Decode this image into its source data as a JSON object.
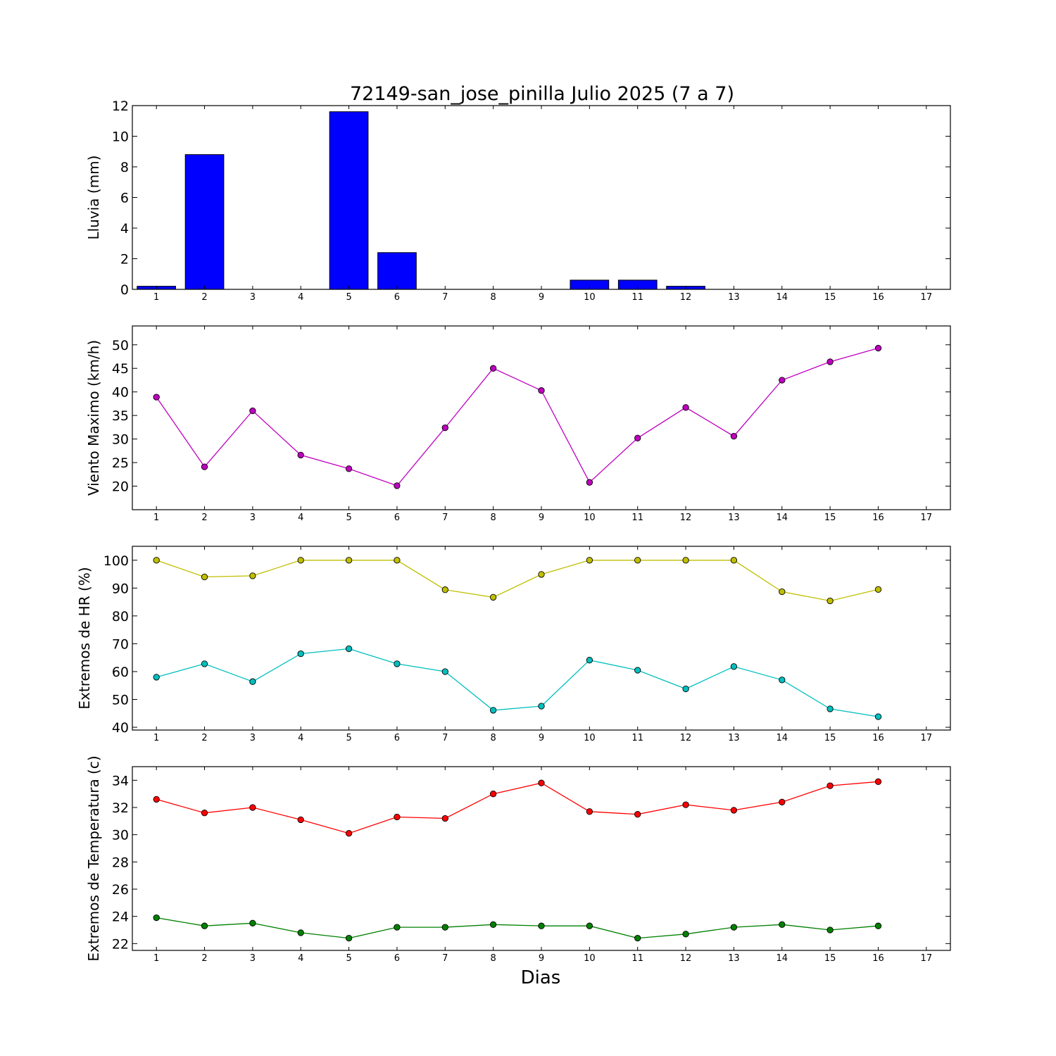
{
  "title": "72149-san_jose_pinilla Julio 2025  (7 a 7)",
  "xlabel": "Dias",
  "chart_data": [
    {
      "type": "bar",
      "ylabel": "Lluvia (mm)",
      "x": [
        1,
        2,
        3,
        4,
        5,
        6,
        7,
        8,
        9,
        10,
        11,
        12,
        13,
        14,
        15,
        16
      ],
      "xticks": [
        1,
        2,
        3,
        4,
        5,
        6,
        7,
        8,
        9,
        10,
        11,
        12,
        13,
        14,
        15,
        16,
        17
      ],
      "xlim": [
        0.5,
        17.5
      ],
      "ylim": [
        0,
        12
      ],
      "yticks": [
        0,
        2,
        4,
        6,
        8,
        10,
        12
      ],
      "series": [
        {
          "values": [
            0.2,
            8.8,
            0,
            0,
            11.6,
            2.4,
            0,
            0,
            0,
            0.6,
            0.6,
            0.2,
            0,
            0,
            0,
            0
          ],
          "color": "#0000ff"
        }
      ]
    },
    {
      "type": "line",
      "ylabel": "Viento Maximo (km/h)",
      "x": [
        1,
        2,
        3,
        4,
        5,
        6,
        7,
        8,
        9,
        10,
        11,
        12,
        13,
        14,
        15,
        16
      ],
      "xticks": [
        1,
        2,
        3,
        4,
        5,
        6,
        7,
        8,
        9,
        10,
        11,
        12,
        13,
        14,
        15,
        16,
        17
      ],
      "xlim": [
        0.5,
        17.5
      ],
      "ylim": [
        15,
        54
      ],
      "yticks": [
        20,
        25,
        30,
        35,
        40,
        45,
        50
      ],
      "series": [
        {
          "values": [
            38.9,
            24.1,
            36.0,
            26.6,
            23.7,
            20.1,
            32.4,
            45.0,
            40.3,
            20.8,
            30.2,
            36.7,
            30.6,
            42.5,
            46.4,
            49.3
          ],
          "color": "#bf00bf"
        }
      ]
    },
    {
      "type": "line",
      "ylabel": "Extremos de HR (%)",
      "x": [
        1,
        2,
        3,
        4,
        5,
        6,
        7,
        8,
        9,
        10,
        11,
        12,
        13,
        14,
        15,
        16
      ],
      "xticks": [
        1,
        2,
        3,
        4,
        5,
        6,
        7,
        8,
        9,
        10,
        11,
        12,
        13,
        14,
        15,
        16,
        17
      ],
      "xlim": [
        0.5,
        17.5
      ],
      "ylim": [
        39,
        105
      ],
      "yticks": [
        40,
        50,
        60,
        70,
        80,
        90,
        100
      ],
      "series": [
        {
          "values": [
            100,
            94,
            94.4,
            100,
            100,
            100,
            89.4,
            86.7,
            94.9,
            100,
            100,
            100,
            100,
            88.7,
            85.4,
            89.5
          ],
          "color": "#bfbf00"
        },
        {
          "values": [
            58,
            62.8,
            56.4,
            66.4,
            68.2,
            62.8,
            60,
            46.1,
            47.6,
            64.1,
            60.5,
            53.8,
            61.8,
            57,
            46.6,
            43.8
          ],
          "color": "#00bfbf"
        }
      ]
    },
    {
      "type": "line",
      "ylabel": "Extremos de Temperatura (c)",
      "x": [
        1,
        2,
        3,
        4,
        5,
        6,
        7,
        8,
        9,
        10,
        11,
        12,
        13,
        14,
        15,
        16
      ],
      "xticks": [
        1,
        2,
        3,
        4,
        5,
        6,
        7,
        8,
        9,
        10,
        11,
        12,
        13,
        14,
        15,
        16,
        17
      ],
      "xlim": [
        0.5,
        17.5
      ],
      "ylim": [
        21.5,
        35
      ],
      "yticks": [
        22,
        24,
        26,
        28,
        30,
        32,
        34
      ],
      "series": [
        {
          "values": [
            32.6,
            31.6,
            32.0,
            31.1,
            30.1,
            31.3,
            31.2,
            33.0,
            33.8,
            31.7,
            31.5,
            32.2,
            31.8,
            32.4,
            33.6,
            33.9
          ],
          "color": "#ff0000"
        },
        {
          "values": [
            23.9,
            23.3,
            23.5,
            22.8,
            22.4,
            23.2,
            23.2,
            23.4,
            23.3,
            23.3,
            22.4,
            22.7,
            23.2,
            23.4,
            23.0,
            23.3
          ],
          "color": "#008000"
        }
      ]
    }
  ]
}
